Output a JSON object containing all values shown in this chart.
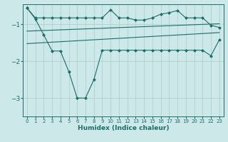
{
  "xlabel": "Humidex (Indice chaleur)",
  "bg_color": "#cce8e8",
  "grid_color": "#b8d8d8",
  "line_color": "#1a6e6a",
  "xlim": [
    -0.5,
    23.5
  ],
  "ylim": [
    -3.5,
    -0.45
  ],
  "yticks": [
    -3,
    -2,
    -1
  ],
  "xticks": [
    0,
    1,
    2,
    3,
    4,
    5,
    6,
    7,
    8,
    9,
    10,
    11,
    12,
    13,
    14,
    15,
    16,
    17,
    18,
    19,
    20,
    21,
    22,
    23
  ],
  "series1_x": [
    0,
    1,
    2,
    3,
    4,
    5,
    6,
    7,
    8,
    9,
    10,
    11,
    12,
    13,
    14,
    15,
    16,
    17,
    18,
    19,
    20,
    21,
    22,
    23
  ],
  "series1_y": [
    -0.55,
    -0.82,
    -0.82,
    -0.82,
    -0.82,
    -0.82,
    -0.82,
    -0.82,
    -0.82,
    -0.82,
    -0.6,
    -0.82,
    -0.82,
    -0.88,
    -0.88,
    -0.82,
    -0.72,
    -0.68,
    -0.62,
    -0.82,
    -0.82,
    -0.82,
    -1.02,
    -1.08
  ],
  "series2_x": [
    0,
    23
  ],
  "series2_y": [
    -1.18,
    -0.98
  ],
  "series3_x": [
    0,
    1,
    2,
    3,
    4,
    5,
    6,
    7,
    8,
    9,
    10,
    11,
    12,
    13,
    14,
    15,
    16,
    17,
    18,
    19,
    20,
    21,
    22,
    23
  ],
  "series3_y": [
    -0.55,
    -0.85,
    -1.28,
    -1.72,
    -1.72,
    -2.28,
    -3.0,
    -3.0,
    -2.5,
    -1.7,
    -1.7,
    -1.7,
    -1.7,
    -1.7,
    -1.7,
    -1.7,
    -1.7,
    -1.7,
    -1.7,
    -1.7,
    -1.7,
    -1.7,
    -1.85,
    -1.42
  ],
  "series4_x": [
    0,
    23
  ],
  "series4_y": [
    -1.52,
    -1.22
  ]
}
